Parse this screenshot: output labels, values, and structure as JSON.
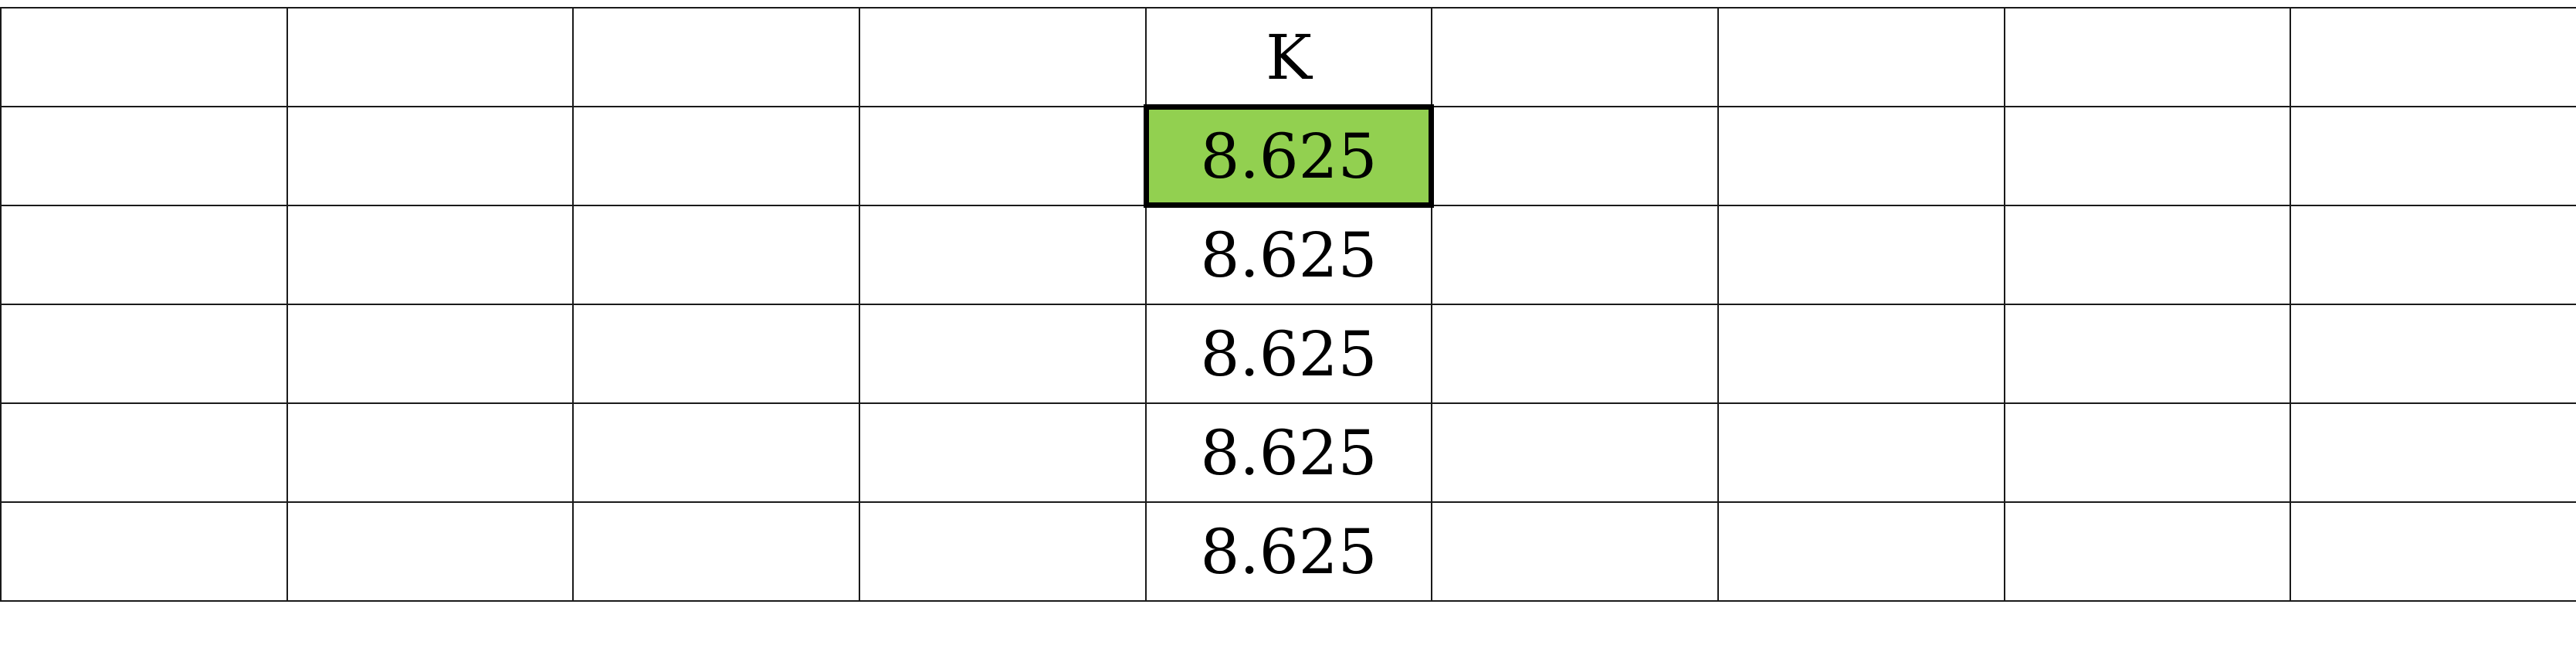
{
  "sheet": {
    "column_count": 9,
    "header_row": [
      "",
      "",
      "",
      "",
      "K",
      "",
      "",
      "",
      ""
    ],
    "rows": [
      [
        "",
        "",
        "",
        "",
        "8.625",
        "",
        "",
        "",
        ""
      ],
      [
        "",
        "",
        "",
        "",
        "8.625",
        "",
        "",
        "",
        ""
      ],
      [
        "",
        "",
        "",
        "",
        "8.625",
        "",
        "",
        "",
        ""
      ],
      [
        "",
        "",
        "",
        "",
        "8.625",
        "",
        "",
        "",
        ""
      ],
      [
        "",
        "",
        "",
        "",
        "8.625",
        "",
        "",
        "",
        ""
      ]
    ],
    "selected_cell": {
      "row": 0,
      "col": 4
    },
    "selected_fill_color": "#92d050",
    "grid_line_color": "#1a1a1a"
  }
}
